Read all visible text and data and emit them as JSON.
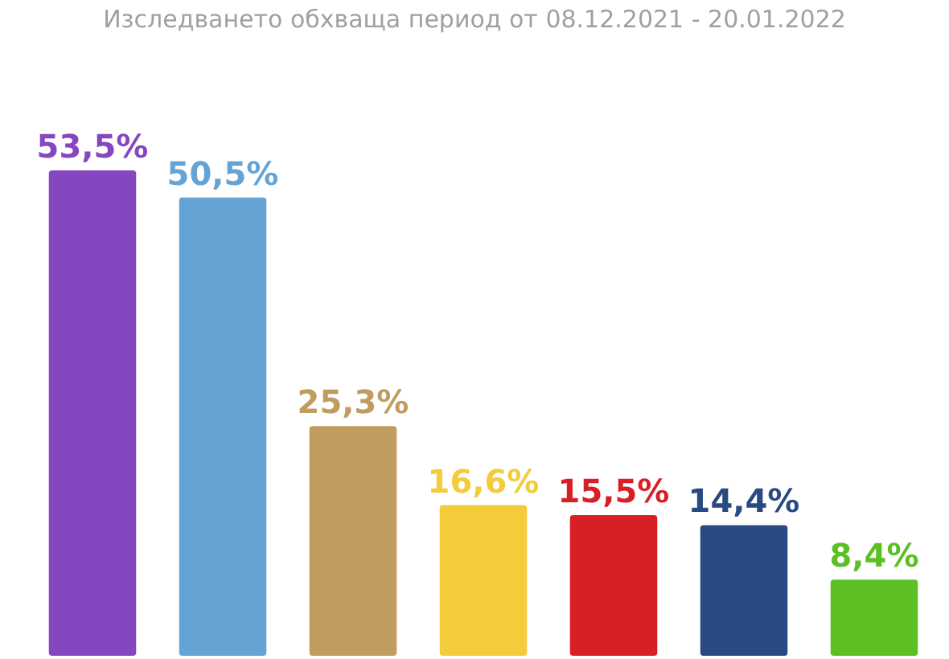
{
  "chart_data": {
    "type": "bar",
    "subtitle": "Изследването обхваща период от 08.12.2021 - 20.01.2022",
    "categories": [
      null,
      null,
      null,
      null,
      null,
      null,
      null
    ],
    "values": [
      53.5,
      50.5,
      25.3,
      16.6,
      15.5,
      14.4,
      8.4
    ],
    "colors": [
      "#8646c0",
      "#64a3d4",
      "#c09c5e",
      "#f3cb3b",
      "#d91f26",
      "#284a80",
      "#5cbf24"
    ],
    "value_labels": [
      "53,5%",
      "50,5%",
      "25,3%",
      "16,6%",
      "15,5%",
      "14,4%",
      "8,4%"
    ]
  }
}
